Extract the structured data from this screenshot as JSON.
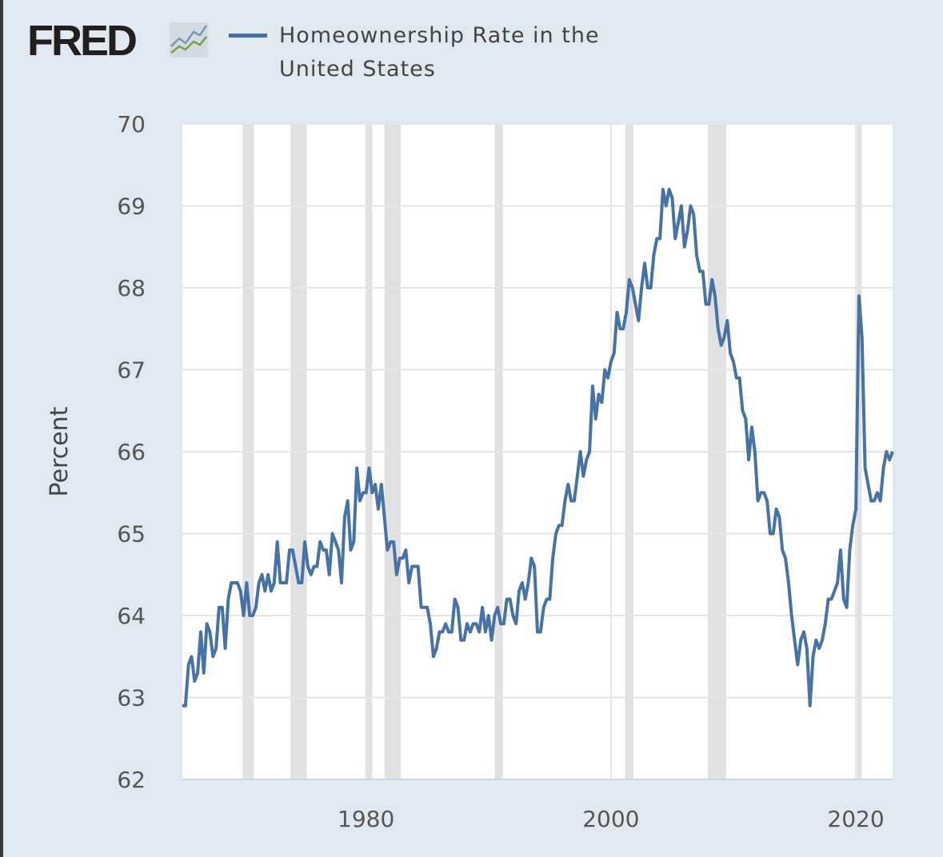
{
  "logo": {
    "text": "FRED",
    "icon": "fred-chart-icon"
  },
  "chart_data": {
    "type": "line",
    "title": "",
    "legend": "top",
    "series": [
      {
        "name": "Homeownership Rate in the United States",
        "color": "#4572a7"
      }
    ],
    "ylabel": "Percent",
    "xlabel": "",
    "ylim": [
      62,
      70
    ],
    "xlim": [
      1965,
      2023
    ],
    "grid": true,
    "y_ticks": [
      "62",
      "63",
      "64",
      "65",
      "66",
      "67",
      "68",
      "69",
      "70"
    ],
    "x_ticks": [
      "1980",
      "2000",
      "2020"
    ],
    "frequency": "quarterly",
    "recession_shading_color": "#e1e1e1",
    "recessions": [
      [
        "1969-12",
        "1970-11"
      ],
      [
        "1973-11",
        "1975-03"
      ],
      [
        "1980-01",
        "1980-07"
      ],
      [
        "1981-07",
        "1982-11"
      ],
      [
        "1990-07",
        "1991-03"
      ],
      [
        "2001-03",
        "2001-11"
      ],
      [
        "2007-12",
        "2009-06"
      ],
      [
        "2020-02",
        "2020-04"
      ]
    ],
    "data": [
      {
        "year": 1965,
        "q": [
          62.9,
          62.9,
          63.4,
          63.5
        ]
      },
      {
        "year": 1966,
        "q": [
          63.2,
          63.3,
          63.8,
          63.3
        ]
      },
      {
        "year": 1967,
        "q": [
          63.9,
          63.8,
          63.5,
          63.6
        ]
      },
      {
        "year": 1968,
        "q": [
          64.1,
          64.1,
          63.6,
          64.2
        ]
      },
      {
        "year": 1969,
        "q": [
          64.4,
          64.4,
          64.4,
          64.3
        ]
      },
      {
        "year": 1970,
        "q": [
          64.0,
          64.4,
          64.0,
          64.0
        ]
      },
      {
        "year": 1971,
        "q": [
          64.1,
          64.4,
          64.5,
          64.3
        ]
      },
      {
        "year": 1972,
        "q": [
          64.5,
          64.3,
          64.4,
          64.9
        ]
      },
      {
        "year": 1973,
        "q": [
          64.4,
          64.4,
          64.4,
          64.8
        ]
      },
      {
        "year": 1974,
        "q": [
          64.8,
          64.6,
          64.4,
          64.4
        ]
      },
      {
        "year": 1975,
        "q": [
          64.9,
          64.6,
          64.5,
          64.6
        ]
      },
      {
        "year": 1976,
        "q": [
          64.6,
          64.9,
          64.8,
          64.8
        ]
      },
      {
        "year": 1977,
        "q": [
          64.5,
          65.0,
          64.9,
          64.8
        ]
      },
      {
        "year": 1978,
        "q": [
          64.4,
          65.2,
          65.4,
          64.8
        ]
      },
      {
        "year": 1979,
        "q": [
          64.9,
          65.8,
          65.4,
          65.5
        ]
      },
      {
        "year": 1980,
        "q": [
          65.5,
          65.8,
          65.5,
          65.6
        ]
      },
      {
        "year": 1981,
        "q": [
          65.3,
          65.6,
          65.2,
          64.8
        ]
      },
      {
        "year": 1982,
        "q": [
          64.9,
          64.9,
          64.5,
          64.7
        ]
      },
      {
        "year": 1983,
        "q": [
          64.7,
          64.8,
          64.4,
          64.6
        ]
      },
      {
        "year": 1984,
        "q": [
          64.6,
          64.6,
          64.1,
          64.1
        ]
      },
      {
        "year": 1985,
        "q": [
          64.1,
          63.9,
          63.5,
          63.6
        ]
      },
      {
        "year": 1986,
        "q": [
          63.8,
          63.8,
          63.9,
          63.8
        ]
      },
      {
        "year": 1987,
        "q": [
          63.8,
          64.2,
          64.1,
          63.7
        ]
      },
      {
        "year": 1988,
        "q": [
          63.7,
          63.9,
          63.8,
          63.9
        ]
      },
      {
        "year": 1989,
        "q": [
          63.9,
          63.8,
          64.1,
          63.8
        ]
      },
      {
        "year": 1990,
        "q": [
          64.0,
          63.7,
          64.0,
          64.1
        ]
      },
      {
        "year": 1991,
        "q": [
          63.9,
          63.9,
          64.2,
          64.2
        ]
      },
      {
        "year": 1992,
        "q": [
          64.0,
          63.9,
          64.3,
          64.4
        ]
      },
      {
        "year": 1993,
        "q": [
          64.2,
          64.4,
          64.7,
          64.6
        ]
      },
      {
        "year": 1994,
        "q": [
          63.8,
          63.8,
          64.1,
          64.2
        ]
      },
      {
        "year": 1995,
        "q": [
          64.2,
          64.7,
          65.0,
          65.1
        ]
      },
      {
        "year": 1996,
        "q": [
          65.1,
          65.4,
          65.6,
          65.4
        ]
      },
      {
        "year": 1997,
        "q": [
          65.4,
          65.7,
          66.0,
          65.7
        ]
      },
      {
        "year": 1998,
        "q": [
          65.9,
          66.0,
          66.8,
          66.4
        ]
      },
      {
        "year": 1999,
        "q": [
          66.7,
          66.6,
          67.0,
          66.9
        ]
      },
      {
        "year": 2000,
        "q": [
          67.1,
          67.2,
          67.7,
          67.5
        ]
      },
      {
        "year": 2001,
        "q": [
          67.5,
          67.7,
          68.1,
          68.0
        ]
      },
      {
        "year": 2002,
        "q": [
          67.8,
          67.6,
          68.0,
          68.3
        ]
      },
      {
        "year": 2003,
        "q": [
          68.0,
          68.0,
          68.4,
          68.6
        ]
      },
      {
        "year": 2004,
        "q": [
          68.6,
          69.2,
          69.0,
          69.2
        ]
      },
      {
        "year": 2005,
        "q": [
          69.1,
          68.6,
          68.8,
          69.0
        ]
      },
      {
        "year": 2006,
        "q": [
          68.5,
          68.7,
          69.0,
          68.9
        ]
      },
      {
        "year": 2007,
        "q": [
          68.4,
          68.2,
          68.2,
          67.8
        ]
      },
      {
        "year": 2008,
        "q": [
          67.8,
          68.1,
          67.9,
          67.5
        ]
      },
      {
        "year": 2009,
        "q": [
          67.3,
          67.4,
          67.6,
          67.2
        ]
      },
      {
        "year": 2010,
        "q": [
          67.1,
          66.9,
          66.9,
          66.5
        ]
      },
      {
        "year": 2011,
        "q": [
          66.4,
          65.9,
          66.3,
          66.0
        ]
      },
      {
        "year": 2012,
        "q": [
          65.4,
          65.5,
          65.5,
          65.4
        ]
      },
      {
        "year": 2013,
        "q": [
          65.0,
          65.0,
          65.3,
          65.2
        ]
      },
      {
        "year": 2014,
        "q": [
          64.8,
          64.7,
          64.4,
          64.0
        ]
      },
      {
        "year": 2015,
        "q": [
          63.7,
          63.4,
          63.7,
          63.8
        ]
      },
      {
        "year": 2016,
        "q": [
          63.6,
          62.9,
          63.5,
          63.7
        ]
      },
      {
        "year": 2017,
        "q": [
          63.6,
          63.7,
          63.9,
          64.2
        ]
      },
      {
        "year": 2018,
        "q": [
          64.2,
          64.3,
          64.4,
          64.8
        ]
      },
      {
        "year": 2019,
        "q": [
          64.2,
          64.1,
          64.8,
          65.1
        ]
      },
      {
        "year": 2020,
        "q": [
          65.3,
          67.9,
          67.4,
          65.8
        ]
      },
      {
        "year": 2021,
        "q": [
          65.6,
          65.4,
          65.4,
          65.5
        ]
      },
      {
        "year": 2022,
        "q": [
          65.4,
          65.8,
          66.0,
          65.9
        ]
      },
      {
        "year": 2023,
        "q": [
          66.0
        ]
      }
    ]
  }
}
